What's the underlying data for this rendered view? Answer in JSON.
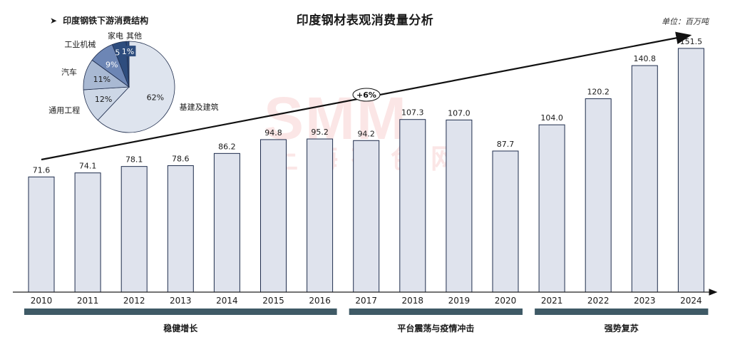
{
  "title": "印度钢材表观消费量分析",
  "unit": "单位：百万吨",
  "growth_label": "+6%",
  "watermark": "SMM",
  "watermark_sub": "上海有色网",
  "segments": [
    {
      "label": "稳健增长",
      "from": "2010",
      "to": "2016"
    },
    {
      "label": "平台震荡与疫情冲击",
      "from": "2017",
      "to": "2020"
    },
    {
      "label": "强势复苏",
      "from": "2021",
      "to": "2024"
    }
  ],
  "colors": {
    "bar_fill": "#dfe3ed",
    "bar_stroke": "#1f2d4d",
    "segment_band": "#3f5a66",
    "pie_dark": "#2e4d7e",
    "pie_mid": "#6d86b5",
    "pie_light": "#a9b9d3",
    "pie_pale": "#cdd7e6",
    "pie_base": "#dee4ee"
  },
  "chart_data": [
    {
      "type": "bar",
      "title": "印度钢材表观消费量分析",
      "categories": [
        "2010",
        "2011",
        "2012",
        "2013",
        "2014",
        "2015",
        "2016",
        "2017",
        "2018",
        "2019",
        "2020",
        "2021",
        "2022",
        "2023",
        "2024"
      ],
      "values": [
        71.6,
        74.1,
        78.1,
        78.6,
        86.2,
        94.8,
        95.2,
        94.2,
        107.3,
        107.0,
        87.7,
        104.0,
        120.2,
        140.8,
        151.5
      ],
      "ylim": [
        0,
        155
      ],
      "grid": false
    },
    {
      "type": "pie",
      "title": "印度钢铁下游消费结构",
      "slices": [
        {
          "name": "基建及建筑",
          "value": 62,
          "label": "62%"
        },
        {
          "name": "通用工程",
          "value": 12,
          "label": "12%"
        },
        {
          "name": "汽车",
          "value": 11,
          "label": "11%"
        },
        {
          "name": "工业机械",
          "value": 9,
          "label": "9%"
        },
        {
          "name": "家电",
          "value": 5,
          "label": "5%"
        },
        {
          "name": "其他",
          "value": 1,
          "label": "1%"
        }
      ]
    }
  ]
}
